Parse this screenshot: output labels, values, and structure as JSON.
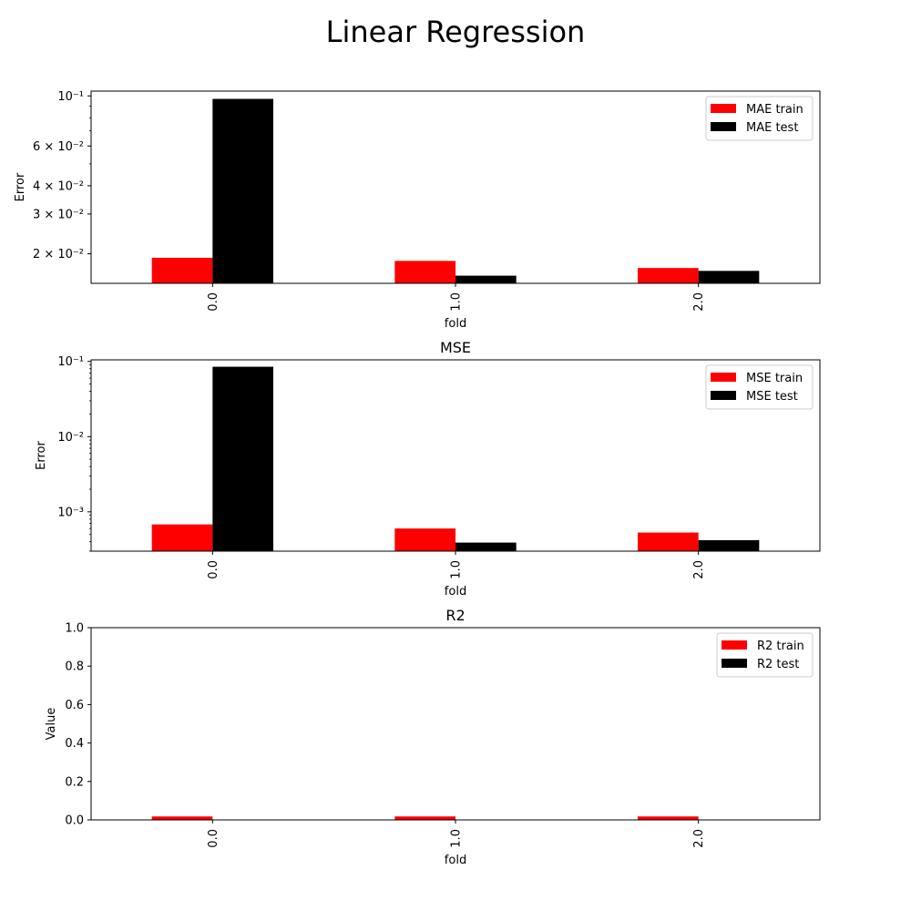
{
  "figure": {
    "title": "Linear Regression"
  },
  "chart_data": [
    {
      "type": "bar",
      "title": "",
      "xlabel": "fold",
      "ylabel": "Error",
      "yscale": "log",
      "ylim": [
        0.0148,
        0.105
      ],
      "categories": [
        "0.0",
        "1.0",
        "2.0"
      ],
      "yticks": [
        {
          "value": 0.02,
          "label": "2 × 10⁻²"
        },
        {
          "value": 0.03,
          "label": "3 × 10⁻²"
        },
        {
          "value": 0.04,
          "label": "4 × 10⁻²"
        },
        {
          "value": 0.06,
          "label": "6 × 10⁻²"
        },
        {
          "value": 0.1,
          "label": "10⁻¹"
        }
      ],
      "legend_position": "top-right",
      "series": [
        {
          "name": "MAE train",
          "color": "#ff0000",
          "values": [
            0.0192,
            0.0186,
            0.0173
          ]
        },
        {
          "name": "MAE test",
          "color": "#000000",
          "values": [
            0.097,
            0.016,
            0.0168
          ]
        }
      ]
    },
    {
      "type": "bar",
      "title": "MSE",
      "xlabel": "fold",
      "ylabel": "Error",
      "yscale": "log",
      "ylim": [
        0.0003,
        0.105
      ],
      "categories": [
        "0.0",
        "1.0",
        "2.0"
      ],
      "yticks": [
        {
          "value": 0.001,
          "label": "10⁻³"
        },
        {
          "value": 0.01,
          "label": "10⁻²"
        },
        {
          "value": 0.1,
          "label": "10⁻¹"
        }
      ],
      "legend_position": "top-right",
      "series": [
        {
          "name": "MSE train",
          "color": "#ff0000",
          "values": [
            0.00068,
            0.0006,
            0.00053
          ]
        },
        {
          "name": "MSE test",
          "color": "#000000",
          "values": [
            0.085,
            0.00039,
            0.00042
          ]
        }
      ]
    },
    {
      "type": "bar",
      "title": "R2",
      "xlabel": "fold",
      "ylabel": "Value",
      "yscale": "linear",
      "ylim": [
        0,
        1
      ],
      "categories": [
        "0.0",
        "1.0",
        "2.0"
      ],
      "yticks": [
        {
          "value": 0.0,
          "label": "0.0"
        },
        {
          "value": 0.2,
          "label": "0.2"
        },
        {
          "value": 0.4,
          "label": "0.4"
        },
        {
          "value": 0.6,
          "label": "0.6"
        },
        {
          "value": 0.8,
          "label": "0.8"
        },
        {
          "value": 1.0,
          "label": "1.0"
        }
      ],
      "legend_position": "top-right",
      "series": [
        {
          "name": "R2 train",
          "color": "#ff0000",
          "values": [
            0.018,
            0.018,
            0.018
          ]
        },
        {
          "name": "R2 test",
          "color": "#000000",
          "values": [
            0,
            0,
            0
          ]
        }
      ]
    }
  ]
}
